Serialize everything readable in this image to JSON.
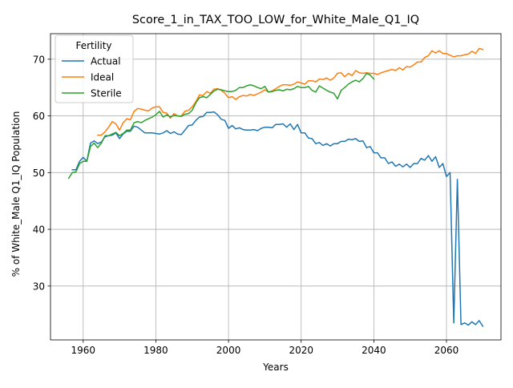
{
  "chart_data": {
    "type": "line",
    "title": "Score_1_in_TAX_TOO_LOW_for_White_Male_Q1_IQ",
    "xlabel": "Years",
    "ylabel": "% of White_Male Q1_IQ Population",
    "xlim": [
      1951,
      2075
    ],
    "ylim": [
      20.5,
      74.5
    ],
    "xticks": [
      1960,
      1980,
      2000,
      2020,
      2040,
      2060
    ],
    "yticks": [
      30,
      40,
      50,
      60,
      70
    ],
    "grid": true,
    "legend": {
      "title": "Fertility",
      "position": "top-left"
    },
    "series": [
      {
        "name": "Actual",
        "color": "#1f77b4",
        "x": [
          1957,
          1958,
          1959,
          1960,
          1961,
          1962,
          1963,
          1964,
          1965,
          1966,
          1967,
          1968,
          1969,
          1970,
          1971,
          1972,
          1973,
          1974,
          1975,
          1976,
          1977,
          1978,
          1979,
          1980,
          1981,
          1982,
          1983,
          1984,
          1985,
          1986,
          1987,
          1988,
          1989,
          1990,
          1991,
          1992,
          1993,
          1994,
          1995,
          1996,
          1997,
          1998,
          1999,
          2000,
          2001,
          2002,
          2003,
          2004,
          2005,
          2006,
          2007,
          2008,
          2009,
          2010,
          2011,
          2012,
          2013,
          2014,
          2015,
          2016,
          2017,
          2018,
          2019,
          2020,
          2021,
          2022,
          2023,
          2024,
          2025,
          2026,
          2027,
          2028,
          2029,
          2030,
          2031,
          2032,
          2033,
          2034,
          2035,
          2036,
          2037,
          2038,
          2039,
          2040,
          2041,
          2042,
          2043,
          2044,
          2045,
          2046,
          2047,
          2048,
          2049,
          2050,
          2051,
          2052,
          2053,
          2054,
          2055,
          2056,
          2057,
          2058,
          2059,
          2060,
          2061,
          2062,
          2063,
          2064,
          2065,
          2066,
          2067,
          2068,
          2069,
          2070
        ],
        "y": [
          50.5,
          50.5,
          52.0,
          52.7,
          52.0,
          55.2,
          55.6,
          55.1,
          55.4,
          56.3,
          56.5,
          56.6,
          57.0,
          56.0,
          56.8,
          57.3,
          57.3,
          58.2,
          58.0,
          57.5,
          57.0,
          57.0,
          57.0,
          56.9,
          56.8,
          57.0,
          57.4,
          56.9,
          57.2,
          56.8,
          56.7,
          57.5,
          58.3,
          58.4,
          59.2,
          59.8,
          59.9,
          60.6,
          60.6,
          60.7,
          60.2,
          59.4,
          59.2,
          57.8,
          58.3,
          57.7,
          57.9,
          57.6,
          57.5,
          57.5,
          57.6,
          57.4,
          57.8,
          58.0,
          58.0,
          57.9,
          58.5,
          58.5,
          58.6,
          58.0,
          58.6,
          57.6,
          58.5,
          57.0,
          57.0,
          56.1,
          56.0,
          55.1,
          55.3,
          54.8,
          55.1,
          54.7,
          55.1,
          55.1,
          55.5,
          55.5,
          55.9,
          55.8,
          56.0,
          55.5,
          55.6,
          54.4,
          54.6,
          53.5,
          53.5,
          52.6,
          52.6,
          51.6,
          51.9,
          51.1,
          51.5,
          51.0,
          51.5,
          50.9,
          51.6,
          51.6,
          52.5,
          52.2,
          53.0,
          52.0,
          52.8,
          50.9,
          51.6,
          49.3,
          50.0,
          23.5,
          48.8,
          23.2,
          23.5,
          23.1,
          23.7,
          23.2,
          23.9,
          22.9
        ]
      },
      {
        "name": "Ideal",
        "color": "#ff7f0e",
        "x": [
          1964,
          1965,
          1966,
          1967,
          1968,
          1969,
          1970,
          1971,
          1972,
          1973,
          1974,
          1975,
          1976,
          1977,
          1978,
          1979,
          1980,
          1981,
          1982,
          1983,
          1984,
          1985,
          1986,
          1987,
          1988,
          1989,
          1990,
          1991,
          1992,
          1993,
          1994,
          1995,
          1996,
          1997,
          1998,
          1999,
          2000,
          2001,
          2002,
          2003,
          2004,
          2005,
          2006,
          2007,
          2008,
          2009,
          2010,
          2011,
          2012,
          2013,
          2014,
          2015,
          2016,
          2017,
          2018,
          2019,
          2020,
          2021,
          2022,
          2023,
          2024,
          2025,
          2026,
          2027,
          2028,
          2029,
          2030,
          2031,
          2032,
          2033,
          2034,
          2035,
          2036,
          2037,
          2038,
          2039,
          2040,
          2041,
          2042,
          2043,
          2044,
          2045,
          2046,
          2047,
          2048,
          2049,
          2050,
          2051,
          2052,
          2053,
          2054,
          2055,
          2056,
          2057,
          2058,
          2059,
          2060,
          2061,
          2062,
          2063,
          2064,
          2065,
          2066,
          2067,
          2068,
          2069,
          2070
        ],
        "y": [
          56.6,
          56.6,
          57.2,
          58.0,
          59.0,
          58.6,
          57.5,
          58.8,
          59.5,
          59.3,
          60.8,
          61.3,
          61.2,
          61.0,
          60.9,
          61.4,
          61.6,
          61.6,
          60.6,
          60.5,
          59.6,
          60.4,
          60.0,
          60.0,
          60.8,
          61.0,
          61.6,
          62.5,
          63.7,
          63.6,
          64.3,
          64.0,
          64.7,
          64.8,
          64.5,
          64.0,
          63.2,
          63.4,
          62.9,
          63.4,
          63.6,
          63.5,
          63.8,
          63.6,
          63.9,
          64.2,
          64.6,
          64.2,
          64.4,
          64.8,
          65.2,
          65.5,
          65.5,
          65.4,
          65.6,
          66.0,
          65.8,
          65.6,
          66.2,
          66.2,
          66.0,
          66.5,
          66.4,
          66.7,
          66.3,
          66.7,
          67.5,
          67.6,
          66.9,
          67.5,
          67.1,
          68.0,
          67.6,
          67.5,
          67.6,
          67.5,
          67.5,
          67.3,
          67.6,
          67.8,
          68.0,
          68.2,
          68.0,
          68.5,
          68.1,
          68.7,
          68.6,
          69.0,
          69.5,
          69.5,
          70.3,
          70.6,
          71.5,
          71.1,
          71.5,
          71.0,
          71.0,
          70.7,
          70.4,
          70.6,
          70.6,
          70.8,
          70.9,
          71.4,
          71.0,
          71.9,
          71.7
        ]
      },
      {
        "name": "Sterile",
        "color": "#2ca02c",
        "x": [
          1956,
          1957,
          1958,
          1959,
          1960,
          1961,
          1962,
          1963,
          1964,
          1965,
          1966,
          1967,
          1968,
          1969,
          1970,
          1971,
          1972,
          1973,
          1974,
          1975,
          1976,
          1977,
          1978,
          1979,
          1980,
          1981,
          1982,
          1983,
          1984,
          1985,
          1986,
          1987,
          1988,
          1989,
          1990,
          1991,
          1992,
          1993,
          1994,
          1995,
          1996,
          1997,
          1998,
          1999,
          2000,
          2001,
          2002,
          2003,
          2004,
          2005,
          2006,
          2007,
          2008,
          2009,
          2010,
          2011,
          2012,
          2013,
          2014,
          2015,
          2016,
          2017,
          2018,
          2019,
          2020,
          2021,
          2022,
          2023,
          2024,
          2025,
          2026,
          2027,
          2028,
          2029,
          2030,
          2031,
          2032,
          2033,
          2034,
          2035,
          2036,
          2037,
          2038,
          2039,
          2040
        ],
        "y": [
          49.0,
          50.0,
          50.1,
          51.6,
          52.0,
          52.0,
          54.6,
          55.2,
          54.4,
          55.2,
          56.5,
          56.5,
          56.8,
          57.1,
          56.5,
          56.9,
          57.5,
          57.5,
          58.8,
          59.0,
          58.8,
          59.2,
          59.5,
          59.8,
          60.2,
          60.8,
          59.8,
          60.2,
          59.8,
          60.1,
          60.0,
          59.9,
          60.3,
          60.4,
          61.0,
          62.3,
          63.2,
          63.4,
          63.2,
          63.8,
          64.4,
          64.7,
          64.6,
          64.4,
          64.3,
          64.3,
          64.5,
          65.0,
          65.0,
          65.3,
          65.5,
          65.3,
          65.0,
          64.8,
          65.2,
          64.2,
          64.3,
          64.5,
          64.6,
          64.4,
          64.7,
          64.6,
          64.8,
          65.2,
          65.0,
          65.0,
          65.2,
          64.5,
          64.2,
          65.3,
          64.9,
          64.5,
          64.2,
          64.0,
          63.0,
          64.5,
          65.0,
          65.6,
          66.0,
          66.3,
          66.0,
          66.6,
          67.5,
          67.2,
          66.5
        ]
      }
    ]
  }
}
